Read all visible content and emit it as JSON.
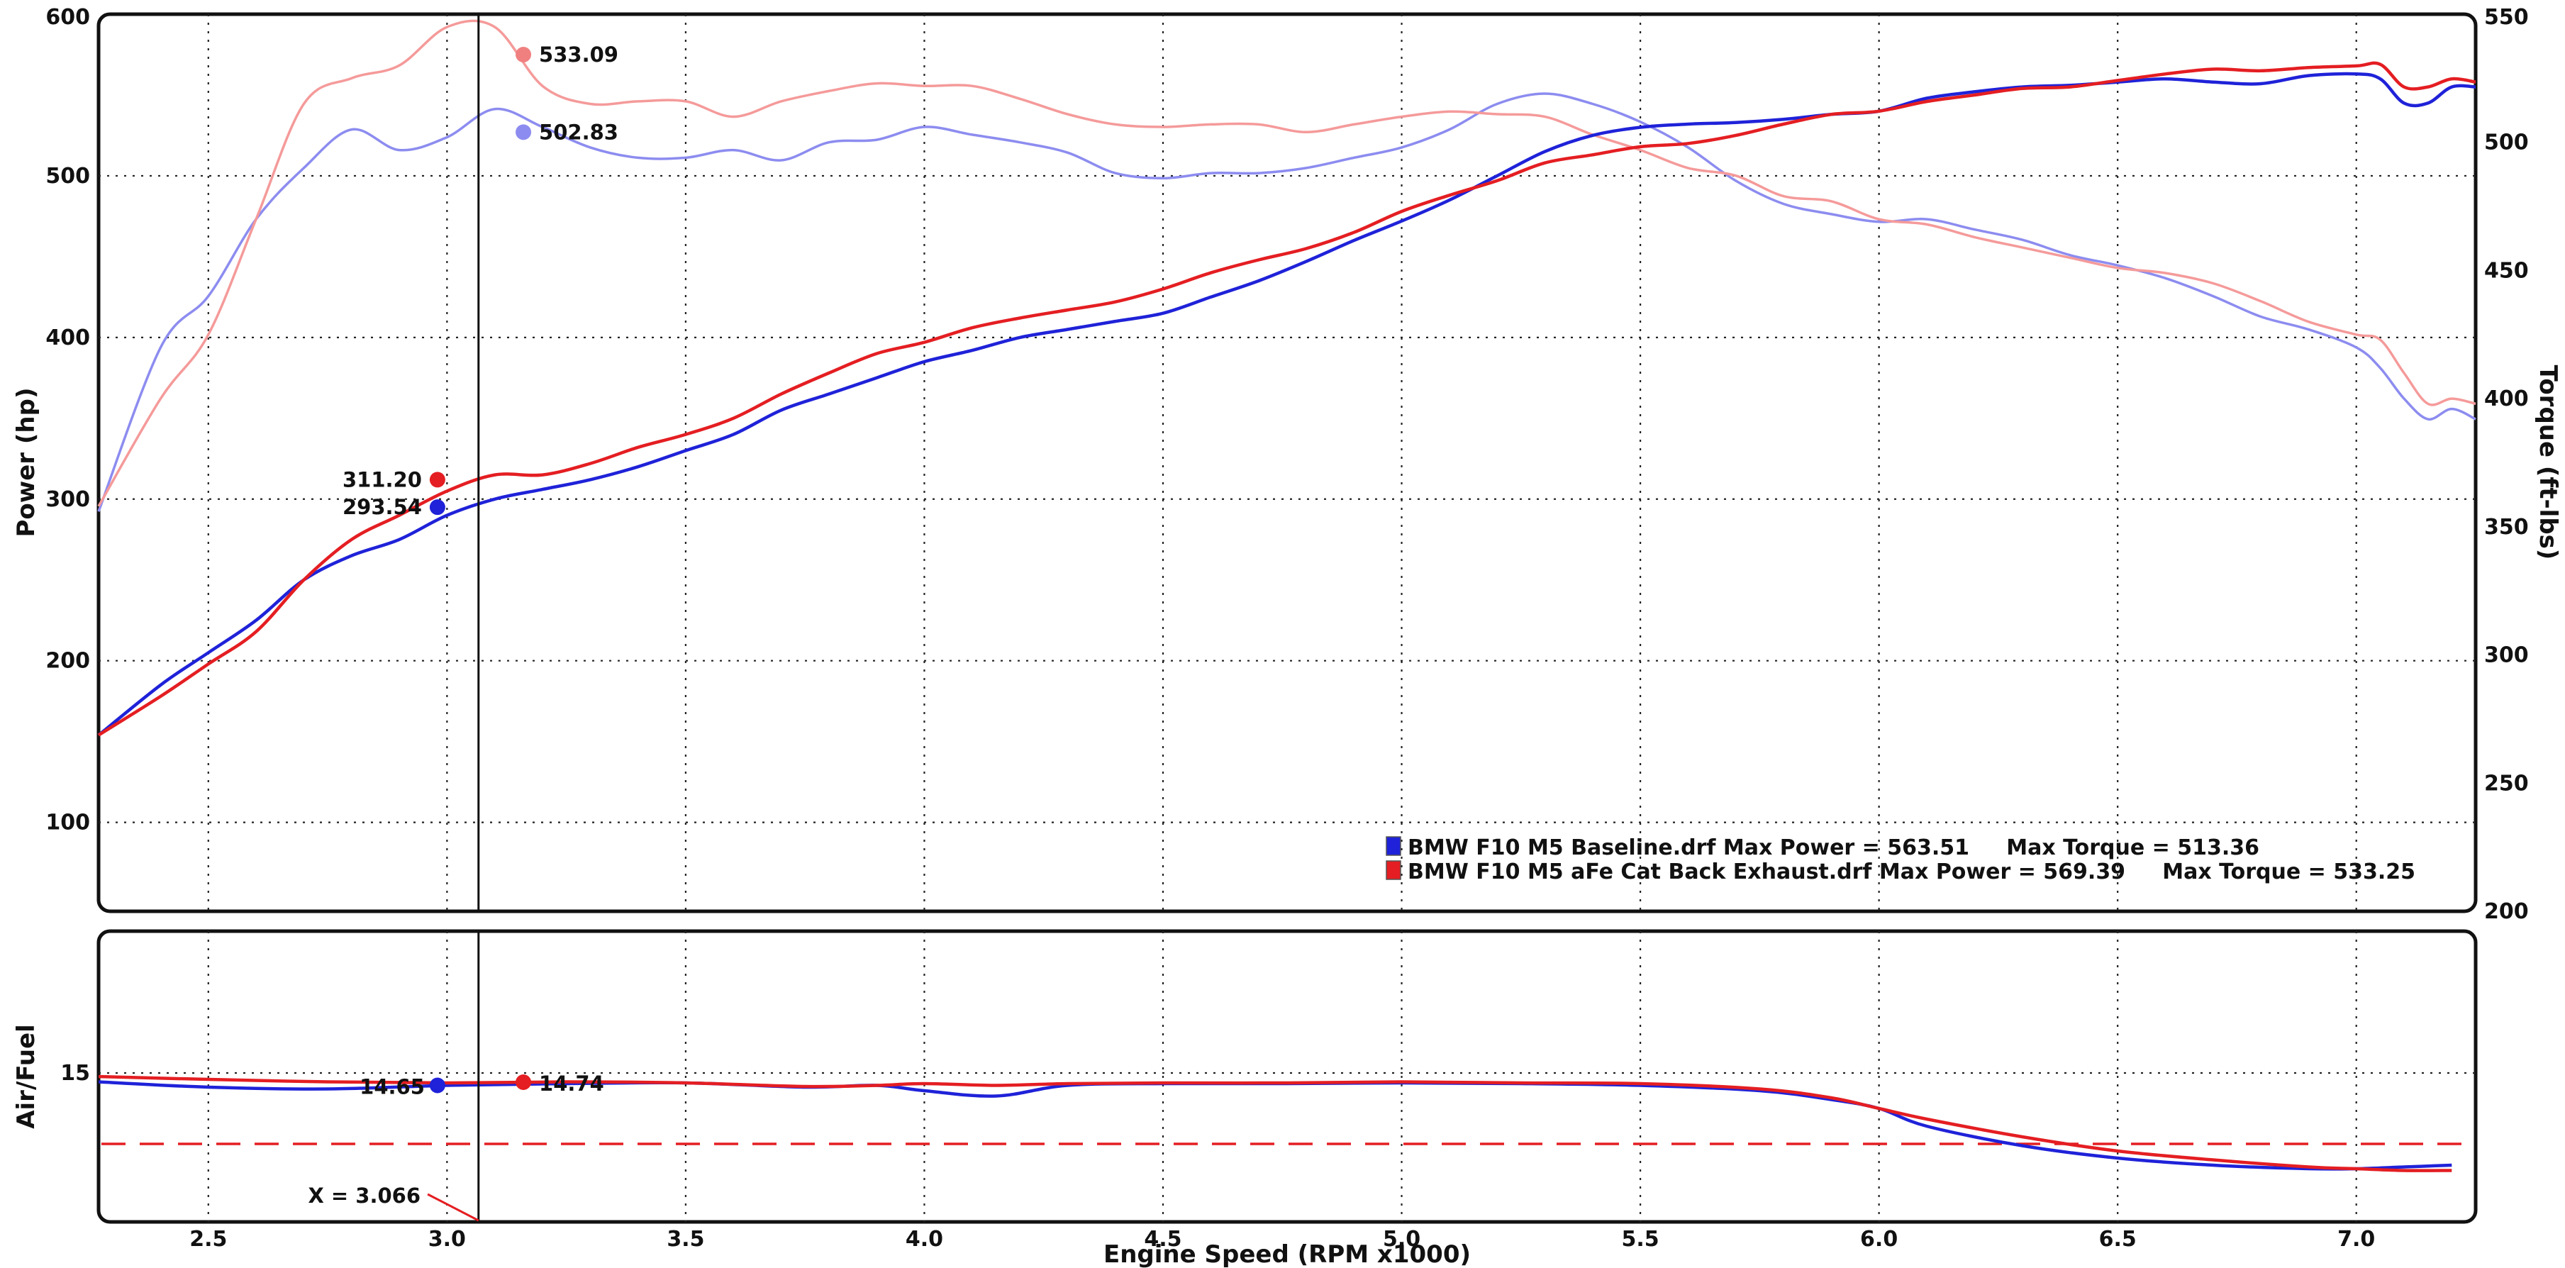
{
  "chart_data": [
    {
      "type": "line",
      "panel": "power-torque",
      "xlabel": "Engine Speed (RPM x1000)",
      "ylabel": "Power (hp)",
      "y2label": "Torque (ft-lbs)",
      "xlim": [
        2.27,
        7.25
      ],
      "ylim": [
        45,
        600
      ],
      "y2lim": [
        200,
        550
      ],
      "xticks": [
        2.5,
        3.0,
        3.5,
        4.0,
        4.5,
        5.0,
        5.5,
        6.0,
        6.5,
        7.0
      ],
      "xtick_labels": [
        "2.5",
        "3.0",
        "3.5",
        "4.0",
        "4.5",
        "5.0",
        "5.5",
        "6.0",
        "6.5",
        "7.0"
      ],
      "yticks": [
        100,
        200,
        300,
        400,
        500,
        600
      ],
      "ytick_labels": [
        "100",
        "200",
        "300",
        "400",
        "500",
        "600"
      ],
      "y2ticks": [
        200,
        250,
        300,
        350,
        400,
        450,
        500,
        550
      ],
      "y2tick_labels": [
        "200",
        "250",
        "300",
        "350",
        "400",
        "450",
        "500",
        "550"
      ],
      "grid": true,
      "legend_position": "bottom-center",
      "cursor_x": 3.066,
      "series": [
        {
          "name": "BMW F10 M5 Baseline.drf Max Power = 563.51     Max Torque = 513.36",
          "quantity": "power",
          "color": "#1f22d8",
          "x": [
            2.27,
            2.4,
            2.5,
            2.6,
            2.7,
            2.8,
            2.9,
            3.0,
            3.1,
            3.2,
            3.3,
            3.4,
            3.5,
            3.6,
            3.7,
            3.8,
            3.9,
            4.0,
            4.1,
            4.2,
            4.3,
            4.4,
            4.5,
            4.6,
            4.7,
            4.8,
            4.9,
            5.0,
            5.1,
            5.2,
            5.3,
            5.4,
            5.5,
            5.6,
            5.7,
            5.8,
            5.9,
            6.0,
            6.1,
            6.2,
            6.3,
            6.4,
            6.5,
            6.6,
            6.7,
            6.8,
            6.9,
            7.0,
            7.05,
            7.1,
            7.15,
            7.2,
            7.25
          ],
          "values": [
            154,
            185,
            205,
            225,
            250,
            265,
            275,
            290,
            300,
            306,
            312,
            320,
            330,
            340,
            355,
            365,
            375,
            385,
            392,
            400,
            405,
            410,
            415,
            425,
            435,
            447,
            460,
            472,
            485,
            500,
            515,
            525,
            530,
            532,
            533,
            535,
            538,
            540,
            548,
            552,
            555,
            556,
            558,
            560,
            558,
            557,
            562,
            563,
            560,
            545,
            545,
            555,
            555
          ]
        },
        {
          "name": "BMW F10 M5 aFe Cat Back Exhaust.drf Max Power = 569.39     Max Torque = 533.25",
          "quantity": "power",
          "color": "#e41e22",
          "x": [
            2.27,
            2.4,
            2.5,
            2.6,
            2.7,
            2.8,
            2.9,
            3.0,
            3.1,
            3.2,
            3.3,
            3.4,
            3.5,
            3.6,
            3.7,
            3.8,
            3.9,
            4.0,
            4.1,
            4.2,
            4.3,
            4.4,
            4.5,
            4.6,
            4.7,
            4.8,
            4.9,
            5.0,
            5.1,
            5.2,
            5.3,
            5.4,
            5.5,
            5.6,
            5.7,
            5.8,
            5.9,
            6.0,
            6.1,
            6.2,
            6.3,
            6.4,
            6.5,
            6.6,
            6.7,
            6.8,
            6.9,
            7.0,
            7.05,
            7.1,
            7.15,
            7.2,
            7.25
          ],
          "values": [
            154,
            178,
            198,
            218,
            250,
            275,
            290,
            305,
            315,
            315,
            322,
            332,
            340,
            350,
            365,
            378,
            390,
            397,
            406,
            412,
            417,
            422,
            430,
            440,
            448,
            455,
            465,
            478,
            488,
            497,
            508,
            513,
            518,
            520,
            525,
            532,
            538,
            540,
            546,
            550,
            554,
            555,
            559,
            563,
            566,
            565,
            567,
            568,
            569,
            555,
            555,
            560,
            558
          ]
        },
        {
          "name": "BMW F10 M5 Baseline.drf Max Power = 563.51     Max Torque = 513.36",
          "quantity": "torque",
          "axis": "y2",
          "color": "#8c8cf0",
          "x": [
            2.27,
            2.4,
            2.5,
            2.6,
            2.7,
            2.8,
            2.9,
            3.0,
            3.1,
            3.2,
            3.3,
            3.4,
            3.5,
            3.6,
            3.7,
            3.8,
            3.9,
            4.0,
            4.1,
            4.2,
            4.3,
            4.4,
            4.5,
            4.6,
            4.7,
            4.8,
            4.9,
            5.0,
            5.1,
            5.2,
            5.3,
            5.4,
            5.5,
            5.6,
            5.7,
            5.8,
            5.9,
            6.0,
            6.1,
            6.2,
            6.3,
            6.4,
            6.5,
            6.6,
            6.7,
            6.8,
            6.9,
            7.0,
            7.05,
            7.1,
            7.15,
            7.2,
            7.25
          ],
          "values": [
            356,
            420,
            440,
            470,
            490,
            505,
            497,
            502,
            513,
            506,
            498,
            494,
            494,
            497,
            493,
            500,
            501,
            506,
            503,
            500,
            496,
            488,
            486,
            488,
            488,
            490,
            494,
            498,
            505,
            515,
            519,
            515,
            508,
            498,
            485,
            476,
            472,
            469,
            470,
            466,
            462,
            456,
            452,
            447,
            440,
            432,
            427,
            420,
            412,
            400,
            392,
            396,
            392
          ]
        },
        {
          "name": "BMW F10 M5 aFe Cat Back Exhaust.drf Max Power = 569.39     Max Torque = 533.25",
          "quantity": "torque",
          "axis": "y2",
          "color": "#f59a9a",
          "x": [
            2.27,
            2.4,
            2.5,
            2.6,
            2.7,
            2.8,
            2.9,
            3.0,
            3.1,
            3.2,
            3.3,
            3.4,
            3.5,
            3.6,
            3.7,
            3.8,
            3.9,
            4.0,
            4.1,
            4.2,
            4.3,
            4.4,
            4.5,
            4.6,
            4.7,
            4.8,
            4.9,
            5.0,
            5.1,
            5.2,
            5.3,
            5.4,
            5.5,
            5.6,
            5.7,
            5.8,
            5.9,
            6.0,
            6.1,
            6.2,
            6.3,
            6.4,
            6.5,
            6.6,
            6.7,
            6.8,
            6.9,
            7.0,
            7.05,
            7.1,
            7.15,
            7.2,
            7.25
          ],
          "values": [
            358,
            400,
            425,
            470,
            515,
            525,
            530,
            545,
            545,
            522,
            515,
            516,
            516,
            510,
            516,
            520,
            523,
            522,
            522,
            517,
            511,
            507,
            506,
            507,
            507,
            504,
            507,
            510,
            512,
            511,
            510,
            503,
            497,
            490,
            487,
            479,
            477,
            470,
            468,
            463,
            459,
            455,
            451,
            449,
            445,
            438,
            430,
            425,
            423,
            410,
            398,
            400,
            398
          ]
        }
      ],
      "annotations": [
        {
          "label": "533.09",
          "x": 3.16,
          "y": 575,
          "color": "#f08080"
        },
        {
          "label": "502.83",
          "x": 3.16,
          "y": 527,
          "color": "#8c8cf0"
        },
        {
          "label": "311.20",
          "x": 2.98,
          "y": 312,
          "color": "#e41e22"
        },
        {
          "label": "293.54",
          "x": 2.98,
          "y": 295,
          "color": "#1f22d8"
        }
      ]
    },
    {
      "type": "line",
      "panel": "air-fuel",
      "xlabel": "Engine Speed (RPM x1000)",
      "ylabel": "Air/Fuel",
      "xlim": [
        2.27,
        7.25
      ],
      "ylim": [
        10.8,
        19.0
      ],
      "yticks": [
        15
      ],
      "ytick_labels": [
        "15"
      ],
      "reference_line": 13,
      "reference_color": "#e41e22",
      "grid": true,
      "series": [
        {
          "name": "BMW F10 M5 Baseline.drf",
          "color": "#1f22d8",
          "x": [
            2.27,
            2.5,
            2.75,
            3.0,
            3.25,
            3.5,
            3.75,
            3.9,
            4.0,
            4.15,
            4.3,
            4.5,
            4.75,
            5.0,
            5.25,
            5.5,
            5.75,
            5.9,
            6.0,
            6.1,
            6.3,
            6.5,
            6.7,
            6.9,
            7.0,
            7.1,
            7.2
          ],
          "values": [
            14.75,
            14.6,
            14.55,
            14.65,
            14.7,
            14.72,
            14.6,
            14.65,
            14.5,
            14.35,
            14.65,
            14.7,
            14.7,
            14.72,
            14.7,
            14.65,
            14.5,
            14.25,
            14.0,
            13.5,
            12.95,
            12.6,
            12.4,
            12.3,
            12.3,
            12.35,
            12.4
          ]
        },
        {
          "name": "BMW F10 M5 aFe Cat Back Exhaust.drf",
          "color": "#e41e22",
          "x": [
            2.27,
            2.5,
            2.75,
            3.0,
            3.25,
            3.5,
            3.75,
            3.9,
            4.0,
            4.15,
            4.3,
            4.5,
            4.75,
            5.0,
            5.25,
            5.5,
            5.75,
            5.9,
            6.0,
            6.1,
            6.3,
            6.5,
            6.7,
            6.9,
            7.0,
            7.1,
            7.2
          ],
          "values": [
            14.9,
            14.82,
            14.75,
            14.72,
            14.75,
            14.72,
            14.62,
            14.65,
            14.7,
            14.65,
            14.7,
            14.72,
            14.72,
            14.75,
            14.72,
            14.7,
            14.55,
            14.3,
            14.0,
            13.7,
            13.2,
            12.8,
            12.55,
            12.35,
            12.3,
            12.25,
            12.25
          ]
        }
      ],
      "annotations": [
        {
          "label": "14.65",
          "x": 2.98,
          "y": 14.65,
          "color": "#1f22d8"
        },
        {
          "label": "14.74",
          "x": 3.16,
          "y": 14.74,
          "color": "#e41e22"
        },
        {
          "label": "X = 3.066",
          "x": 2.9,
          "y": 11.3,
          "color": "#111111"
        }
      ]
    }
  ]
}
